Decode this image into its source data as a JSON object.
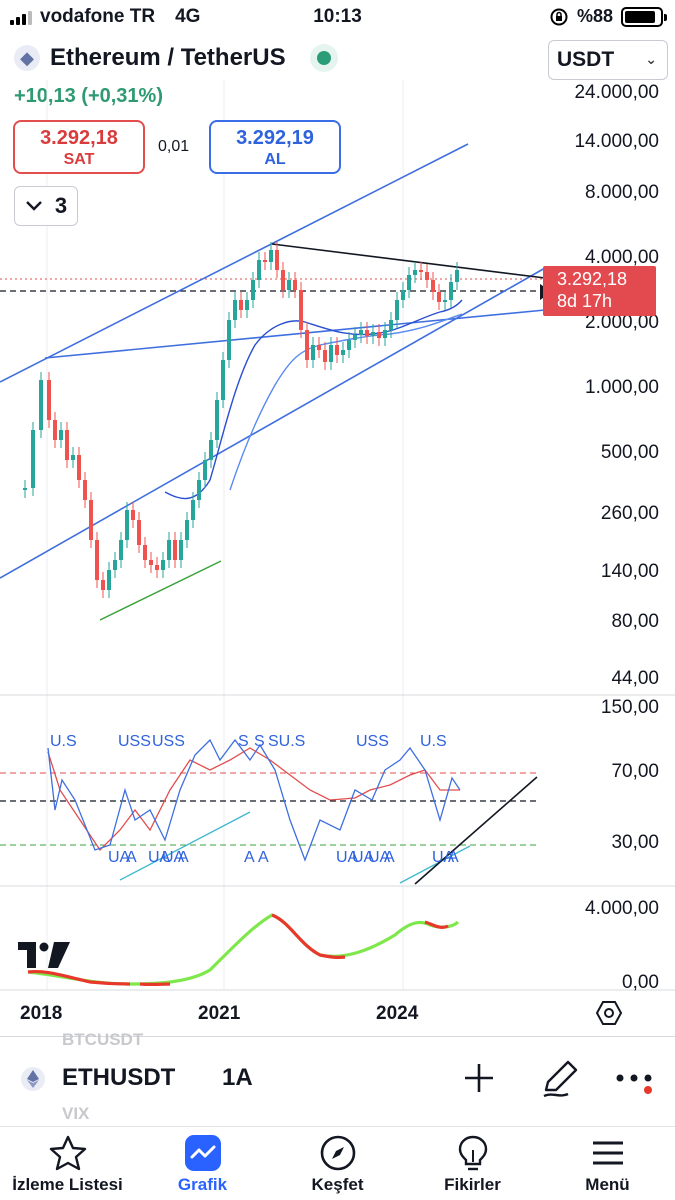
{
  "status_bar": {
    "carrier": "vodafone TR",
    "network": "4G",
    "time": "10:13",
    "battery_percent": "%88",
    "battery_level": 0.88
  },
  "header": {
    "symbol_title": "Ethereum / TetherUS",
    "change": "+10,13 (+0,31%)",
    "currency": "USDT"
  },
  "trade": {
    "sell_price": "3.292,18",
    "sell_label": "SAT",
    "spread": "0,01",
    "buy_price": "3.292,19",
    "buy_label": "AL",
    "indicator_count": "3"
  },
  "price_scale": {
    "labels": [
      "24.000,00",
      "14.000,00",
      "8.000,00",
      "4.000,00",
      "2.000,00",
      "1.000,00",
      "500,00",
      "260,00",
      "140,00",
      "80,00",
      "44,00"
    ],
    "current_price": "3.292,18",
    "countdown": "8d 17h"
  },
  "oscillator_scale": [
    "150,00",
    "70,00",
    "30,00"
  ],
  "volume_scale": [
    "4.000,00",
    "0,00"
  ],
  "oscillator_markers": {
    "top": [
      "U.S",
      "USS",
      "USS",
      "S",
      "S",
      "SU.S",
      "USS",
      "U.S"
    ],
    "bottom": [
      "UA",
      "A",
      "UA",
      "UA",
      "A",
      "A",
      "A",
      "UA",
      "UA",
      "UA",
      "A",
      "UA",
      "A"
    ]
  },
  "x_axis": [
    "2018",
    "2021",
    "2024"
  ],
  "colors": {
    "up": "#26a69a",
    "down": "#ef5350",
    "accent": "#2962ff",
    "channel": "#3f6fdf"
  },
  "bottom_panel": {
    "symbol": "ETHUSDT",
    "interval": "1A",
    "ghost_above": "BTCUSDT",
    "ghost_below": "VIX"
  },
  "tabs": [
    {
      "label": "İzleme Listesi",
      "icon": "star-icon"
    },
    {
      "label": "Grafik",
      "icon": "chart-icon"
    },
    {
      "label": "Keşfet",
      "icon": "compass-icon"
    },
    {
      "label": "Fikirler",
      "icon": "lightbulb-icon"
    },
    {
      "label": "Menü",
      "icon": "menu-icon"
    }
  ],
  "chart_data": {
    "type": "candlestick",
    "symbol": "ETHUSDT",
    "interval": "1A",
    "scale": "log",
    "ylim": [
      44,
      24000
    ],
    "x_ticks": [
      "2018",
      "2021",
      "2024"
    ],
    "last_price": 3292.18
  }
}
